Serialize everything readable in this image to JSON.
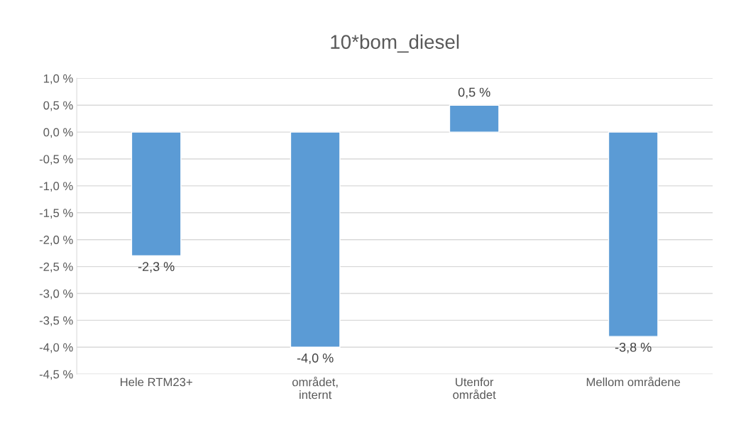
{
  "chart_data": {
    "type": "bar",
    "title": "10*bom_diesel",
    "categories": [
      "Hele RTM23+",
      "området,\ninternt",
      "Utenfor\nområdet",
      "Mellom områdene"
    ],
    "values": [
      -2.3,
      -4.0,
      0.5,
      -3.8
    ],
    "value_labels": [
      "-2,3 %",
      "-4,0 %",
      "0,5 %",
      "-3,8 %"
    ],
    "color": "#5b9bd5",
    "ylim": [
      -4.5,
      1.0
    ],
    "yticks": [
      {
        "value": -4.5,
        "label": "-4,5 %"
      },
      {
        "value": -4.0,
        "label": "-4,0 %"
      },
      {
        "value": -3.5,
        "label": "-3,5 %"
      },
      {
        "value": -3.0,
        "label": "-3,0 %"
      },
      {
        "value": -2.5,
        "label": "-2,5 %"
      },
      {
        "value": -2.0,
        "label": "-2,0 %"
      },
      {
        "value": -1.5,
        "label": "-1,5 %"
      },
      {
        "value": -1.0,
        "label": "-1,0 %"
      },
      {
        "value": -0.5,
        "label": "-0,5 %"
      },
      {
        "value": 0.0,
        "label": "0,0 %"
      },
      {
        "value": 0.5,
        "label": "0,5 %"
      },
      {
        "value": 1.0,
        "label": "1,0 %"
      }
    ],
    "grid": "y",
    "legend": false
  }
}
